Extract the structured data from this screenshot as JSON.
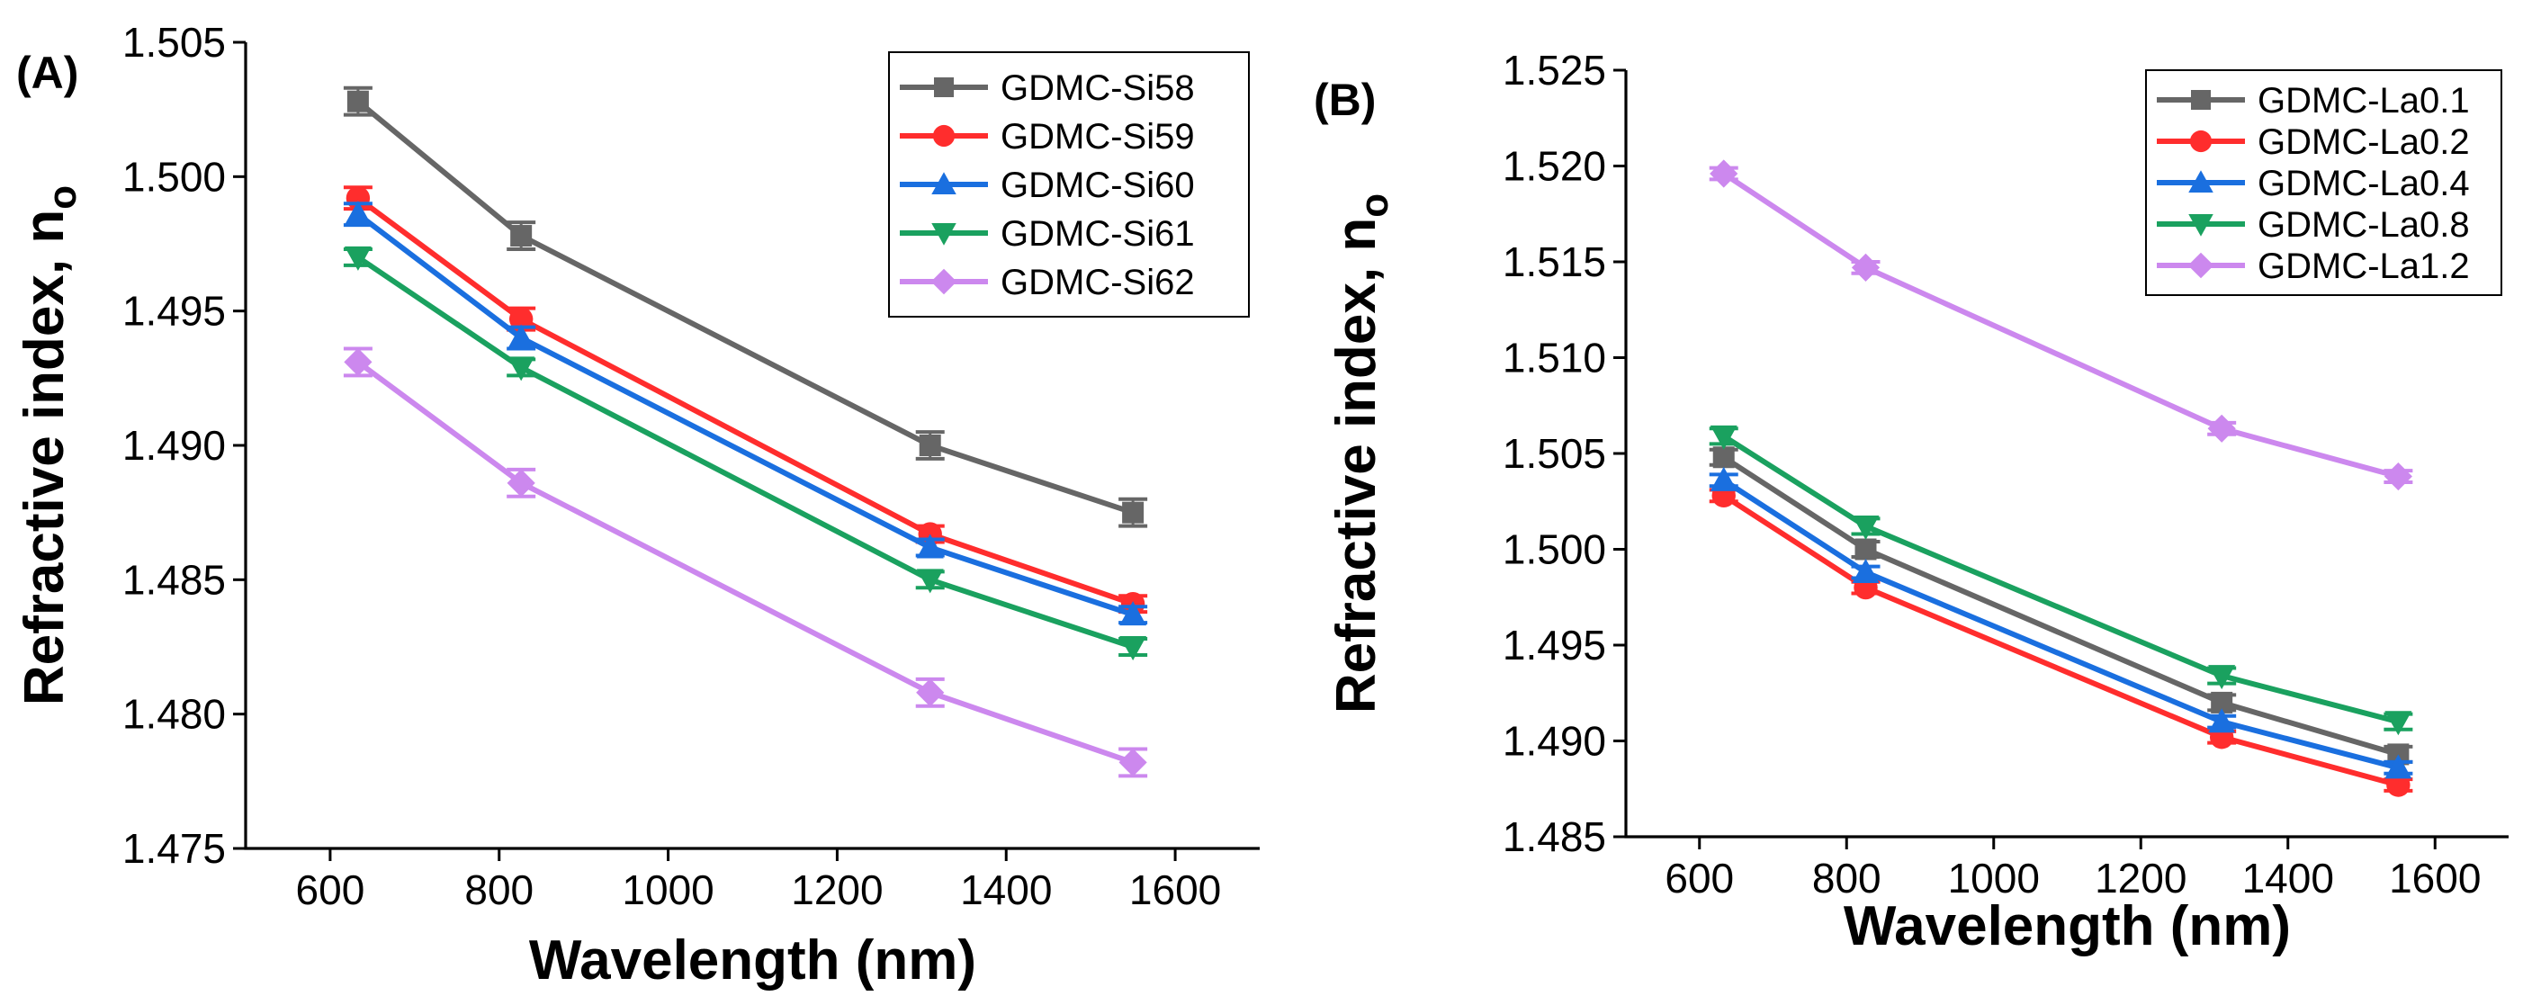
{
  "figure": {
    "panels": [
      "A",
      "B"
    ]
  },
  "chart_data": [
    {
      "panel_label": "(A)",
      "type": "line",
      "xlabel": "Wavelength (nm)",
      "ylabel": "Refractive index, n",
      "ylabel_subscript": "o",
      "xlim": [
        500,
        1700
      ],
      "ylim": [
        1.475,
        1.505
      ],
      "xticks": [
        600,
        800,
        1000,
        1200,
        1400,
        1600
      ],
      "yticks": [
        1.475,
        1.48,
        1.485,
        1.49,
        1.495,
        1.5,
        1.505
      ],
      "ytick_labels": [
        "1.475",
        "1.480",
        "1.485",
        "1.490",
        "1.495",
        "1.500",
        "1.505"
      ],
      "xtick_labels": [
        "600",
        "800",
        "1000",
        "1200",
        "1400",
        "1600"
      ],
      "legend_position": "top-right",
      "x": [
        633,
        826,
        1310,
        1550
      ],
      "series": [
        {
          "name": "GDMC-Si58",
          "color": "#666666",
          "marker": "square",
          "values": [
            1.5028,
            1.4978,
            1.49,
            1.4875
          ],
          "error": [
            0.0005,
            0.0005,
            0.0005,
            0.0005
          ]
        },
        {
          "name": "GDMC-Si59",
          "color": "#ff2d2d",
          "marker": "circle",
          "values": [
            1.4992,
            1.4947,
            1.4867,
            1.4841
          ],
          "error": [
            0.0004,
            0.0004,
            0.0003,
            0.0003
          ]
        },
        {
          "name": "GDMC-Si60",
          "color": "#1a6fdf",
          "marker": "triangle-up",
          "values": [
            1.4986,
            1.494,
            1.4862,
            1.4837
          ],
          "error": [
            0.0004,
            0.0004,
            0.0003,
            0.0003
          ]
        },
        {
          "name": "GDMC-Si61",
          "color": "#1aa15f",
          "marker": "triangle-down",
          "values": [
            1.497,
            1.4929,
            1.485,
            1.4825
          ],
          "error": [
            0.0003,
            0.0003,
            0.0003,
            0.0003
          ]
        },
        {
          "name": "GDMC-Si62",
          "color": "#cc88ee",
          "marker": "diamond",
          "values": [
            1.4931,
            1.4886,
            1.4808,
            1.4782
          ],
          "error": [
            0.0005,
            0.0005,
            0.0005,
            0.0005
          ]
        }
      ]
    },
    {
      "panel_label": "(B)",
      "type": "line",
      "xlabel": "Wavelength (nm)",
      "ylabel": "Refractive index, n",
      "ylabel_subscript": "o",
      "xlim": [
        500,
        1700
      ],
      "ylim": [
        1.485,
        1.525
      ],
      "xticks": [
        600,
        800,
        1000,
        1200,
        1400,
        1600
      ],
      "yticks": [
        1.485,
        1.49,
        1.495,
        1.5,
        1.505,
        1.51,
        1.515,
        1.52,
        1.525
      ],
      "ytick_labels": [
        "1.485",
        "1.490",
        "1.495",
        "1.500",
        "1.505",
        "1.510",
        "1.515",
        "1.520",
        "1.525"
      ],
      "xtick_labels": [
        "600",
        "800",
        "1000",
        "1200",
        "1400",
        "1600"
      ],
      "legend_position": "top-right",
      "x": [
        633,
        826,
        1310,
        1550
      ],
      "series": [
        {
          "name": "GDMC-La0.1",
          "color": "#666666",
          "marker": "square",
          "values": [
            1.5048,
            1.5,
            1.492,
            1.4893
          ],
          "error": [
            0.0004,
            0.0004,
            0.0004,
            0.0004
          ]
        },
        {
          "name": "GDMC-La0.2",
          "color": "#ff2d2d",
          "marker": "circle",
          "values": [
            1.5028,
            1.498,
            1.4902,
            1.4877
          ],
          "error": [
            0.0003,
            0.0003,
            0.0003,
            0.0003
          ]
        },
        {
          "name": "GDMC-La0.4",
          "color": "#1a6fdf",
          "marker": "triangle-up",
          "values": [
            1.5036,
            1.4988,
            1.491,
            1.4886
          ],
          "error": [
            0.0003,
            0.0003,
            0.0003,
            0.0003
          ]
        },
        {
          "name": "GDMC-La0.8",
          "color": "#1aa15f",
          "marker": "triangle-down",
          "values": [
            1.5059,
            1.5012,
            1.4934,
            1.491
          ],
          "error": [
            0.0004,
            0.0004,
            0.0004,
            0.0004
          ]
        },
        {
          "name": "GDMC-La1.2",
          "color": "#cc88ee",
          "marker": "diamond",
          "values": [
            1.5196,
            1.5147,
            1.5063,
            1.5038
          ],
          "error": [
            0.0003,
            0.0003,
            0.0003,
            0.0003
          ]
        }
      ]
    }
  ]
}
